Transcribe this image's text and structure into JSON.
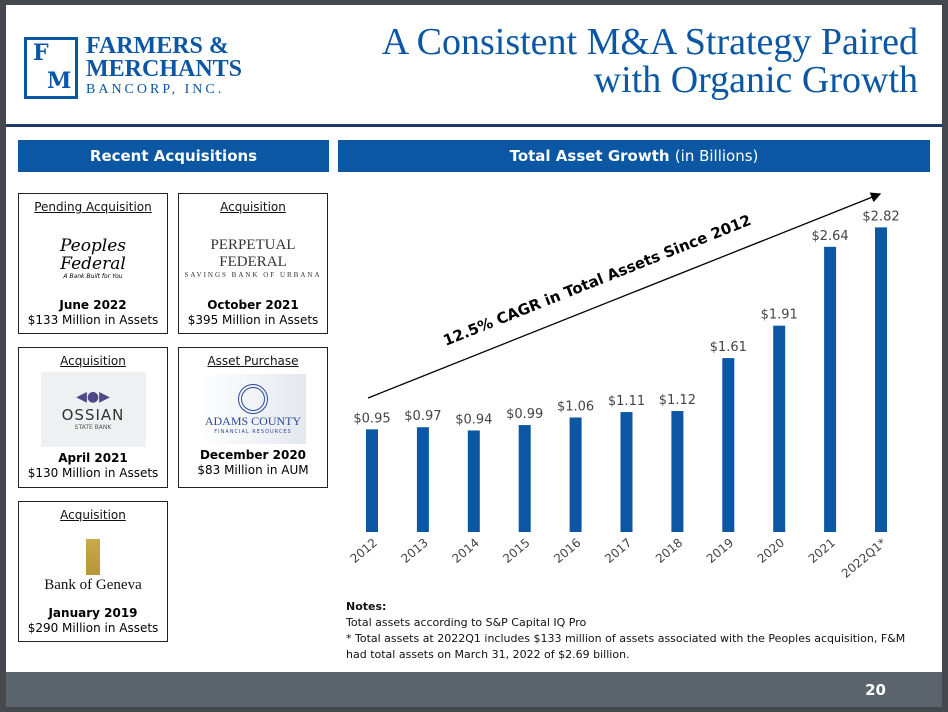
{
  "header": {
    "logo": {
      "letters": [
        "F",
        "M"
      ],
      "line1": "FARMERS &",
      "line2": "MERCHANTS",
      "line3": "BANCORP, INC."
    },
    "title_line1": "A Consistent M&A Strategy Paired",
    "title_line2": "with Organic Growth"
  },
  "left_panel": {
    "heading": "Recent Acquisitions",
    "cards": [
      {
        "type": "Pending Acquisition",
        "logo_text": "Peoples Federal",
        "logo_sub": "A Bank Built for You",
        "date": "June 2022",
        "amount": "$133 Million in Assets"
      },
      {
        "type": "Acquisition",
        "logo_text": "PERPETUAL FEDERAL",
        "logo_sub": "SAVINGS BANK OF URBANA",
        "date": "October 2021",
        "amount": "$395 Million in Assets"
      },
      {
        "type": "Acquisition",
        "logo_text": "OSSIAN",
        "logo_sub": "STATE BANK",
        "date": "April 2021",
        "amount": "$130 Million in Assets"
      },
      {
        "type": "Asset Purchase",
        "logo_text": "ADAMS COUNTY",
        "logo_sub": "FINANCIAL RESOURCES",
        "date": "December 2020",
        "amount": "$83 Million in AUM"
      },
      {
        "type": "Acquisition",
        "logo_text": "Bank of Geneva",
        "logo_sub": "",
        "date": "January 2019",
        "amount": "$290 Million in Assets"
      }
    ]
  },
  "chart_data": {
    "type": "bar",
    "title": "Total Asset Growth",
    "subtitle": "(in Billions)",
    "categories": [
      "2012",
      "2013",
      "2014",
      "2015",
      "2016",
      "2017",
      "2018",
      "2019",
      "2020",
      "2021",
      "2022Q1*"
    ],
    "values": [
      0.95,
      0.97,
      0.94,
      0.99,
      1.06,
      1.11,
      1.12,
      1.61,
      1.91,
      2.64,
      2.82
    ],
    "data_labels": [
      "$0.95",
      "$0.97",
      "$0.94",
      "$0.99",
      "$1.06",
      "$1.11",
      "$1.12",
      "$1.61",
      "$1.91",
      "$2.64",
      "$2.82"
    ],
    "annotation": "12.5% CAGR in Total Assets Since 2012",
    "ylim": [
      0,
      2.82
    ],
    "grid": false,
    "bar_color": "#0b57a4"
  },
  "notes": {
    "heading": "Notes:",
    "line1": "Total assets according to S&P Capital IQ Pro",
    "line2": "* Total assets at 2022Q1 includes $133 million of assets associated with the Peoples acquisition, F&M had total assets on March 31, 2022 of $2.69 billion."
  },
  "footer": {
    "page_number": "20"
  }
}
